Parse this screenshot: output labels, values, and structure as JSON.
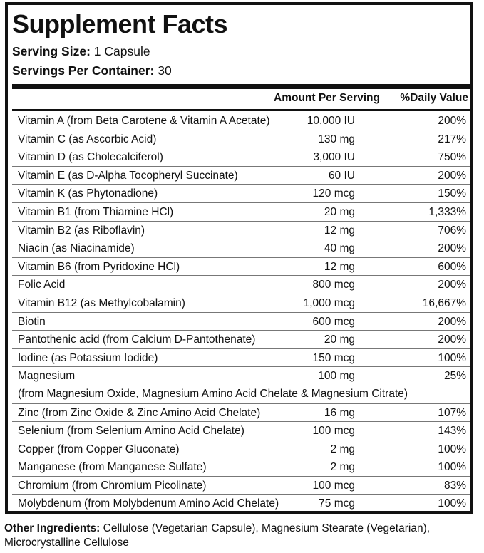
{
  "title": "Supplement Facts",
  "serving_size_label": "Serving Size:",
  "serving_size_value": "1 Capsule",
  "servings_per_container_label": "Servings Per Container:",
  "servings_per_container_value": "30",
  "header": {
    "amount": "Amount Per Serving",
    "daily_value": "%Daily Value"
  },
  "rows": [
    {
      "name": "Vitamin A (from Beta Carotene & Vitamin A Acetate)",
      "amount": "10,000 IU",
      "dv": "200%"
    },
    {
      "name": "Vitamin C (as Ascorbic Acid)",
      "amount": "130 mg",
      "dv": "217%"
    },
    {
      "name": "Vitamin D (as Cholecalciferol)",
      "amount": "3,000 IU",
      "dv": "750%"
    },
    {
      "name": "Vitamin E (as D-Alpha Tocopheryl Succinate)",
      "amount": "60 IU",
      "dv": "200%"
    },
    {
      "name": "Vitamin K (as Phytonadione)",
      "amount": "120 mcg",
      "dv": "150%"
    },
    {
      "name": "Vitamin B1 (from Thiamine HCl)",
      "amount": "20 mg",
      "dv": "1,333%"
    },
    {
      "name": "Vitamin B2 (as Riboflavin)",
      "amount": "12 mg",
      "dv": "706%"
    },
    {
      "name": "Niacin (as Niacinamide)",
      "amount": "40 mg",
      "dv": "200%"
    },
    {
      "name": "Vitamin B6 (from Pyridoxine HCl)",
      "amount": "12 mg",
      "dv": "600%"
    },
    {
      "name": "Folic Acid",
      "amount": "800 mcg",
      "dv": "200%"
    },
    {
      "name": "Vitamin B12 (as Methylcobalamin)",
      "amount": "1,000 mcg",
      "dv": "16,667%"
    },
    {
      "name": "Biotin",
      "amount": "600 mcg",
      "dv": "200%"
    },
    {
      "name": "Pantothenic acid (from Calcium D-Pantothenate)",
      "amount": "20 mg",
      "dv": "200%"
    },
    {
      "name": "Iodine (as Potassium Iodide)",
      "amount": "150 mcg",
      "dv": "100%"
    },
    {
      "name": "Magnesium",
      "amount": "100 mg",
      "dv": "25%",
      "source": "(from Magnesium Oxide, Magnesium Amino Acid Chelate & Magnesium Citrate)"
    },
    {
      "name": "Zinc (from Zinc Oxide & Zinc Amino Acid Chelate)",
      "amount": "16 mg",
      "dv": "107%"
    },
    {
      "name": "Selenium (from Selenium Amino Acid Chelate)",
      "amount": "100 mcg",
      "dv": "143%"
    },
    {
      "name": "Copper (from Copper Gluconate)",
      "amount": "2 mg",
      "dv": "100%"
    },
    {
      "name": "Manganese (from Manganese Sulfate)",
      "amount": "2 mg",
      "dv": "100%"
    },
    {
      "name": "Chromium (from Chromium Picolinate)",
      "amount": "100 mcg",
      "dv": "83%"
    },
    {
      "name": "Molybdenum (from Molybdenum Amino Acid Chelate)",
      "amount": "75 mcg",
      "dv": "100%"
    }
  ],
  "other_ingredients_label": "Other Ingredients:",
  "other_ingredients_text": "Cellulose (Vegetarian Capsule), Magnesium Stearate (Vegetarian), Microcrystalline Cellulose"
}
